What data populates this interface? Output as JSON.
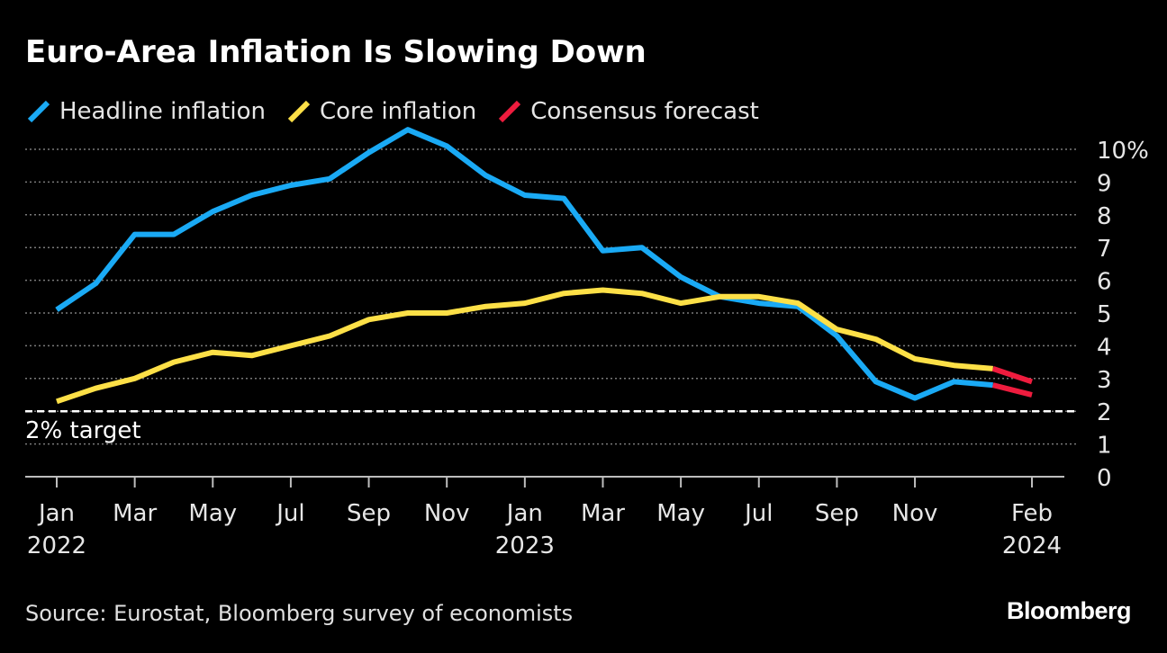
{
  "title": "Euro-Area Inflation Is Slowing Down",
  "legend": [
    {
      "label": "Headline inflation",
      "color": "#1aaaf5"
    },
    {
      "label": "Core inflation",
      "color": "#fde047"
    },
    {
      "label": "Consensus forecast",
      "color": "#ee1c3e"
    }
  ],
  "source": "Source: Eurostat, Bloomberg survey of economists",
  "brand": "Bloomberg",
  "chart_data": {
    "type": "line",
    "x": [
      "2022-01",
      "2022-02",
      "2022-03",
      "2022-04",
      "2022-05",
      "2022-06",
      "2022-07",
      "2022-08",
      "2022-09",
      "2022-10",
      "2022-11",
      "2022-12",
      "2023-01",
      "2023-02",
      "2023-03",
      "2023-04",
      "2023-05",
      "2023-06",
      "2023-07",
      "2023-08",
      "2023-09",
      "2023-10",
      "2023-11",
      "2023-12",
      "2024-01",
      "2024-02"
    ],
    "x_tick_labels": [
      {
        "x": "2022-01",
        "month": "Jan",
        "year": "2022"
      },
      {
        "x": "2022-03",
        "month": "Mar",
        "year": ""
      },
      {
        "x": "2022-05",
        "month": "May",
        "year": ""
      },
      {
        "x": "2022-07",
        "month": "Jul",
        "year": ""
      },
      {
        "x": "2022-09",
        "month": "Sep",
        "year": ""
      },
      {
        "x": "2022-11",
        "month": "Nov",
        "year": ""
      },
      {
        "x": "2023-01",
        "month": "Jan",
        "year": "2023"
      },
      {
        "x": "2023-03",
        "month": "Mar",
        "year": ""
      },
      {
        "x": "2023-05",
        "month": "May",
        "year": ""
      },
      {
        "x": "2023-07",
        "month": "Jul",
        "year": ""
      },
      {
        "x": "2023-09",
        "month": "Sep",
        "year": ""
      },
      {
        "x": "2023-11",
        "month": "Nov",
        "year": ""
      },
      {
        "x": "2024-02",
        "month": "Feb",
        "year": "2024"
      }
    ],
    "y_tick_labels": [
      "0",
      "1",
      "2",
      "3",
      "4",
      "5",
      "6",
      "7",
      "8",
      "9",
      "10%"
    ],
    "ylim": [
      0,
      10
    ],
    "series": [
      {
        "name": "Headline inflation",
        "color": "#1aaaf5",
        "values": [
          5.1,
          5.9,
          7.4,
          7.4,
          8.1,
          8.6,
          8.9,
          9.1,
          9.9,
          10.6,
          10.1,
          9.2,
          8.6,
          8.5,
          6.9,
          7.0,
          6.1,
          5.5,
          5.3,
          5.2,
          4.3,
          2.9,
          2.4,
          2.9,
          2.8,
          null
        ]
      },
      {
        "name": "Core inflation",
        "color": "#fde047",
        "values": [
          2.3,
          2.7,
          3.0,
          3.5,
          3.8,
          3.7,
          4.0,
          4.3,
          4.8,
          5.0,
          5.0,
          5.2,
          5.3,
          5.6,
          5.7,
          5.6,
          5.3,
          5.5,
          5.5,
          5.3,
          4.5,
          4.2,
          3.6,
          3.4,
          3.3,
          null
        ]
      },
      {
        "name": "Consensus forecast",
        "color": "#ee1c3e",
        "segments": [
          {
            "x": [
              "2024-01",
              "2024-02"
            ],
            "values": [
              2.8,
              2.5
            ]
          },
          {
            "x": [
              "2024-01",
              "2024-02"
            ],
            "values": [
              3.3,
              2.9
            ]
          }
        ]
      }
    ],
    "reference_line": {
      "value": 2,
      "label": "2% target",
      "style": "dashed",
      "color": "#ffffff"
    },
    "grid": true,
    "legend_position": "top-left",
    "xlabel": "",
    "ylabel": ""
  }
}
